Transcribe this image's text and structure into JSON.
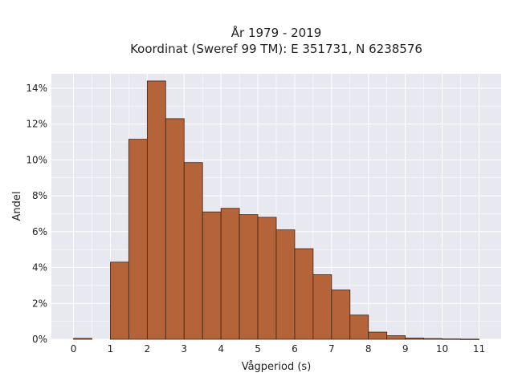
{
  "chart_data": {
    "type": "bar",
    "title_line1": "År 1979 - 2019",
    "title_line2": "Koordinat (Sweref 99 TM): E 351731, N 6238576",
    "xlabel": "Vågperiod (s)",
    "ylabel": "Andel",
    "bin_width": 0.5,
    "bin_starts": [
      0,
      0.5,
      1,
      1.5,
      2,
      2.5,
      3,
      3.5,
      4,
      4.5,
      5,
      5.5,
      6,
      6.5,
      7,
      7.5,
      8,
      8.5,
      9,
      9.5,
      10,
      10.5
    ],
    "values": [
      0.05,
      0,
      4.3,
      11.15,
      14.4,
      12.3,
      9.85,
      7.1,
      7.3,
      6.95,
      6.8,
      6.1,
      5.05,
      3.6,
      2.75,
      1.35,
      0.4,
      0.2,
      0.07,
      0.04,
      0.02,
      0.01
    ],
    "xlim": [
      -0.6,
      11.6
    ],
    "ylim": [
      0,
      14.8
    ],
    "x_ticks": [
      0,
      1,
      2,
      3,
      4,
      5,
      6,
      7,
      8,
      9,
      10,
      11
    ],
    "x_tick_labels": [
      "0",
      "1",
      "2",
      "3",
      "4",
      "5",
      "6",
      "7",
      "8",
      "9",
      "10",
      "11"
    ],
    "y_ticks": [
      0,
      2,
      4,
      6,
      8,
      10,
      12,
      14
    ],
    "y_tick_labels": [
      "0%",
      "2%",
      "4%",
      "6%",
      "8%",
      "10%",
      "12%",
      "14%"
    ],
    "grid": true,
    "colors": {
      "bar_fill": "#b5643a",
      "bar_edge": "#3b2417",
      "plot_background": "#e8e8f1",
      "grid": "#ffffff"
    }
  }
}
